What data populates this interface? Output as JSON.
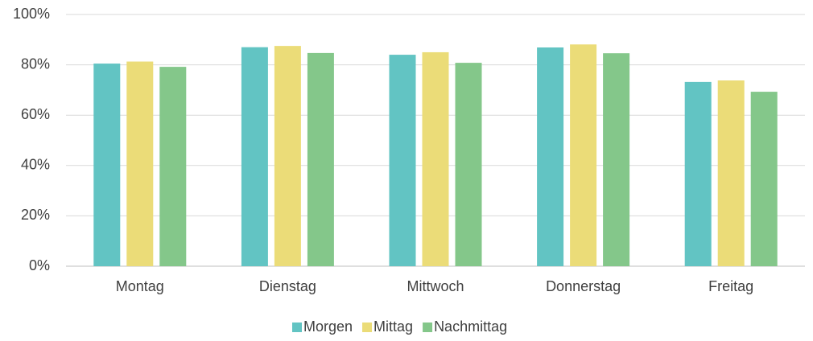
{
  "chart_data": {
    "type": "bar",
    "categories": [
      "Montag",
      "Dienstag",
      "Mittwoch",
      "Donnerstag",
      "Freitag"
    ],
    "series": [
      {
        "name": "Morgen",
        "color": "#62c4c3",
        "values": [
          80.5,
          87,
          84,
          86.9,
          73.2
        ]
      },
      {
        "name": "Mittag",
        "color": "#ebdc78",
        "values": [
          81.3,
          87.5,
          85,
          88.1,
          73.8
        ]
      },
      {
        "name": "Nachmittag",
        "color": "#84c78a",
        "values": [
          79.2,
          84.7,
          80.8,
          84.6,
          69.3
        ]
      }
    ],
    "ylim": [
      0,
      100
    ],
    "yticks": [
      {
        "value": 0,
        "label": "0%"
      },
      {
        "value": 20,
        "label": "20%"
      },
      {
        "value": 40,
        "label": "40%"
      },
      {
        "value": 60,
        "label": "60%"
      },
      {
        "value": 80,
        "label": "80%"
      },
      {
        "value": 100,
        "label": "100%"
      }
    ],
    "grid": true,
    "legend": "bottom"
  }
}
